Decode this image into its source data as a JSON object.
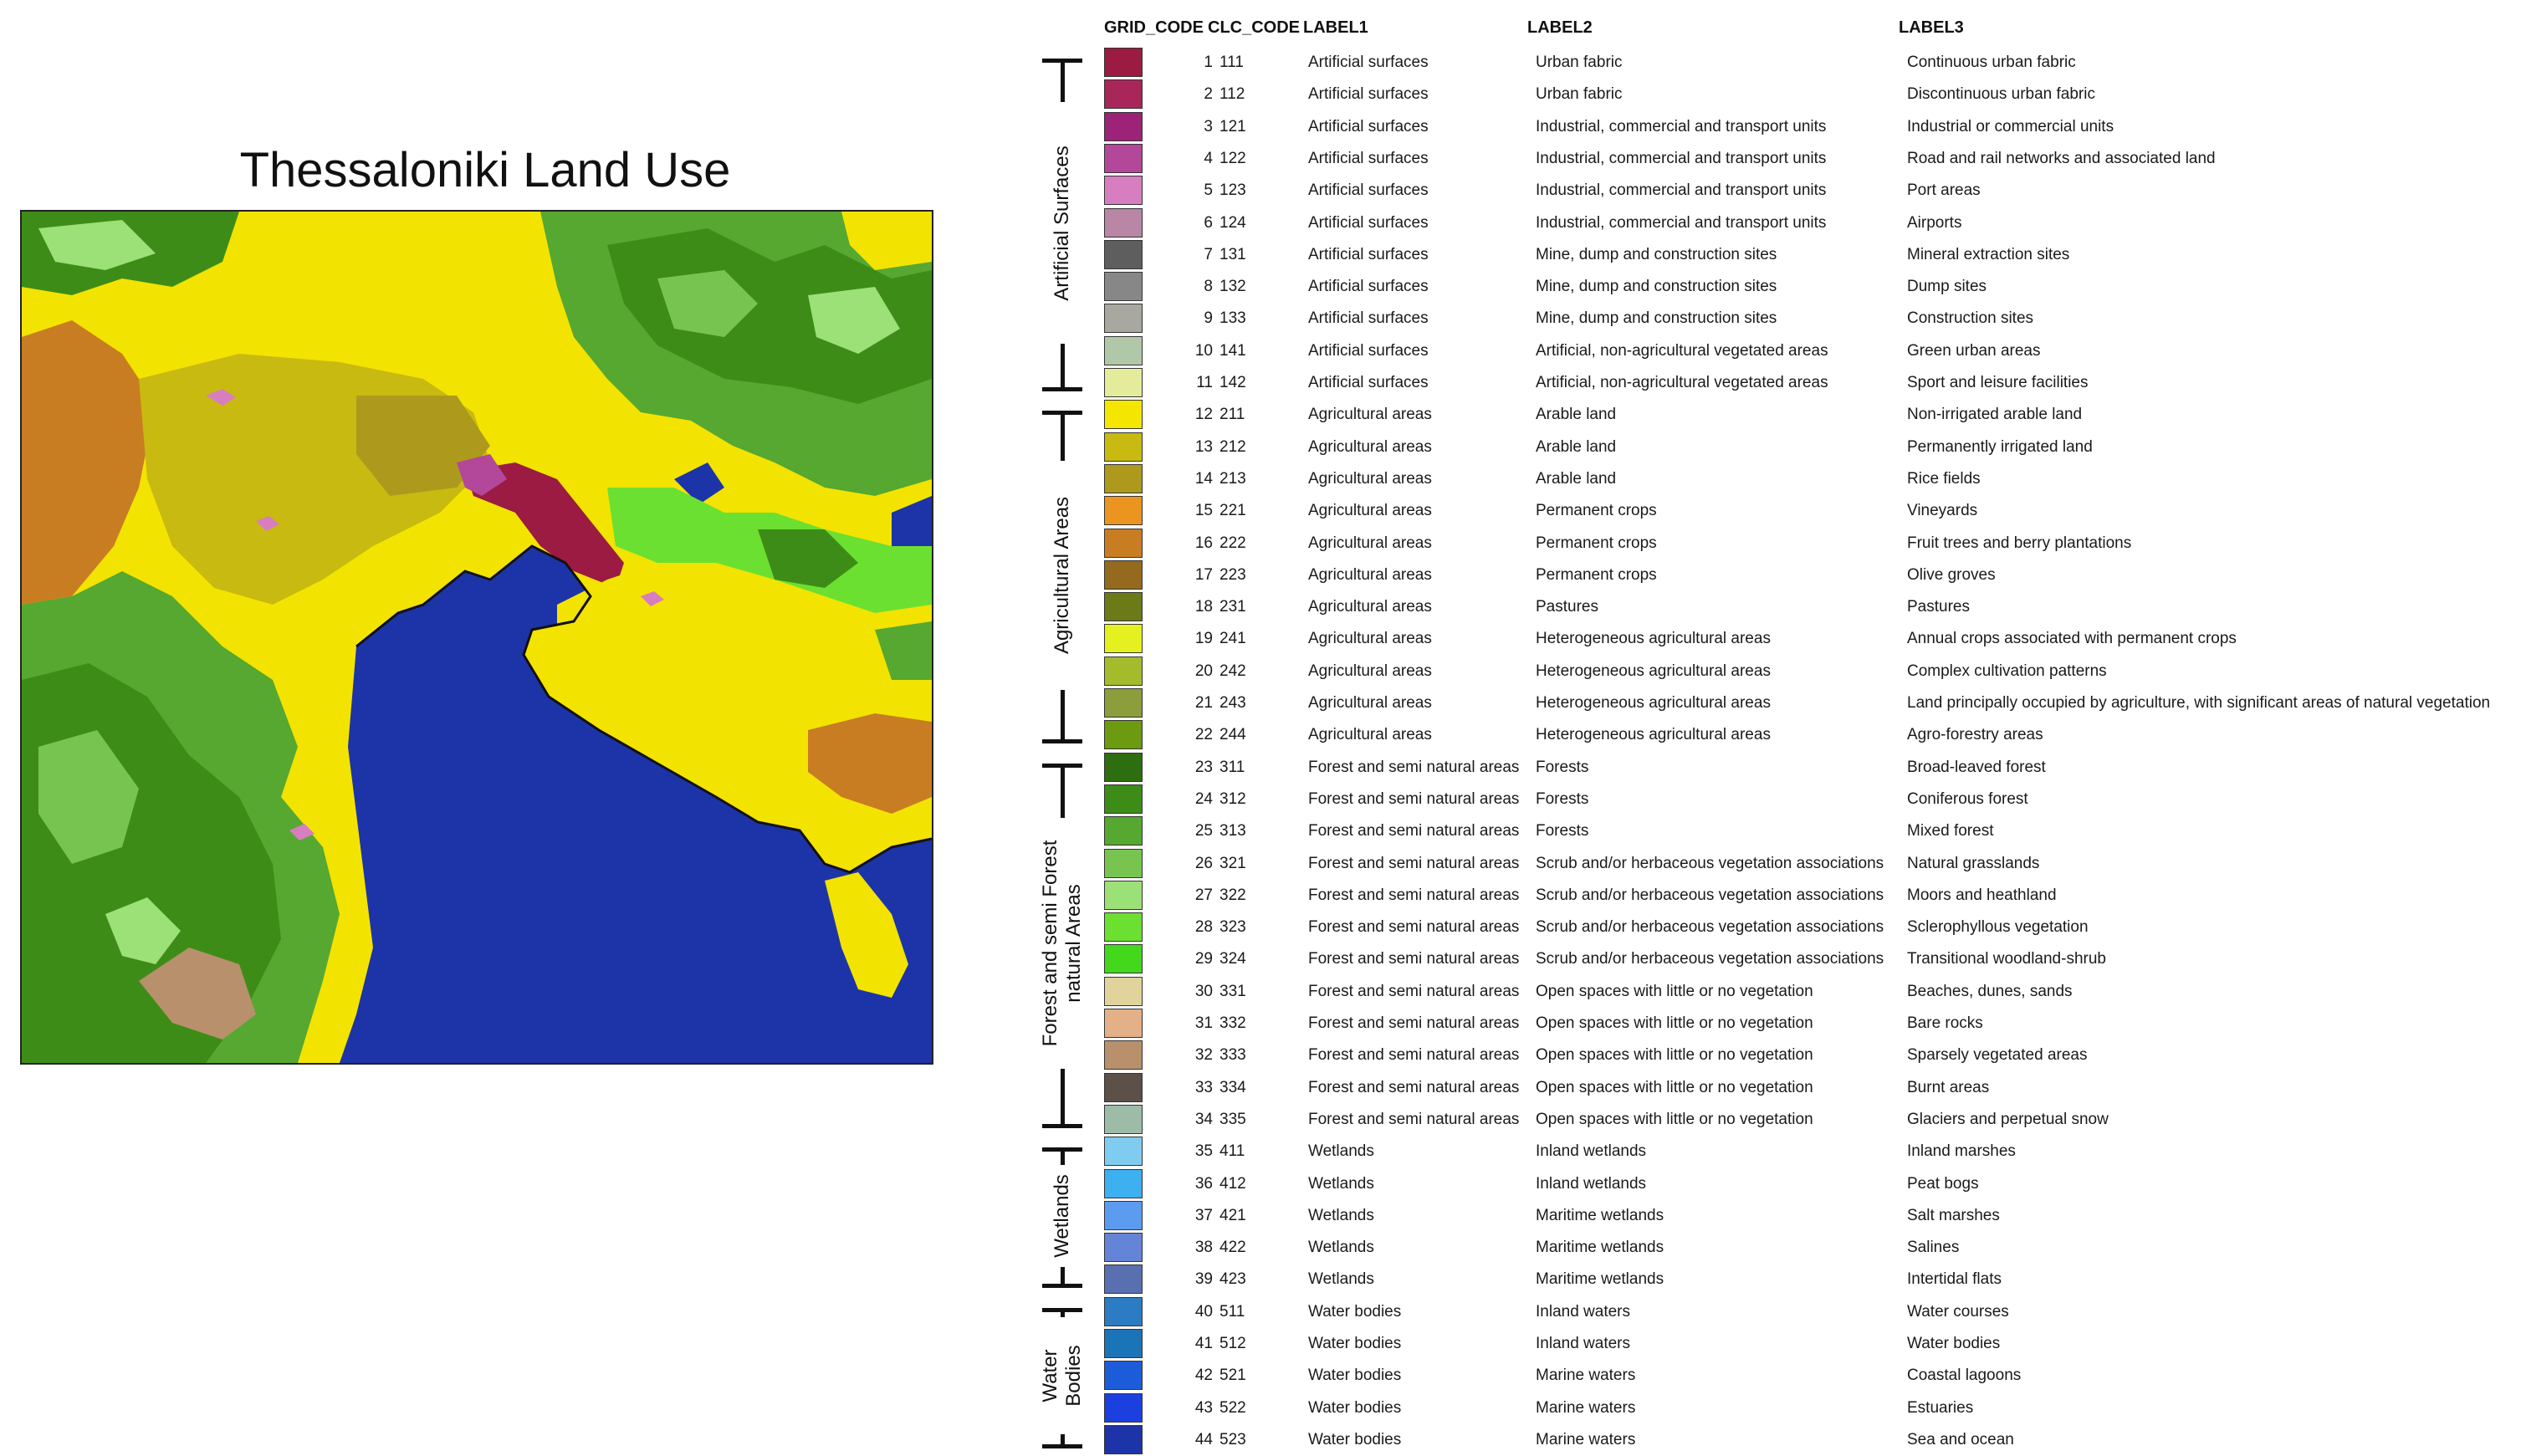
{
  "map": {
    "title": "Thessaloniki Land Use"
  },
  "legend": {
    "headers": {
      "grid_code": "GRID_CODE",
      "clc_code": "CLC_CODE",
      "label1": "LABEL1",
      "label2": "LABEL2",
      "label3": "LABEL3"
    },
    "groups": [
      {
        "label": "Artificial Surfaces",
        "first": 0,
        "last": 10
      },
      {
        "label": "Agricultural Areas",
        "first": 11,
        "last": 21
      },
      {
        "label": "Forest and semi Forest natural Areas",
        "lines": [
          "Forest and semi Forest",
          "natural Areas"
        ],
        "first": 22,
        "last": 33
      },
      {
        "label": "Wetlands",
        "first": 34,
        "last": 38
      },
      {
        "label": "Water Bodies",
        "lines": [
          "Water",
          "Bodies"
        ],
        "first": 39,
        "last": 43
      }
    ],
    "rows": [
      {
        "grid": "1",
        "clc": "111",
        "l1": "Artificial surfaces",
        "l2": "Urban fabric",
        "l3": "Continuous urban fabric",
        "color": "#9b1b43"
      },
      {
        "grid": "2",
        "clc": "112",
        "l1": "Artificial surfaces",
        "l2": "Urban fabric",
        "l3": "Discontinuous urban fabric",
        "color": "#a8265a"
      },
      {
        "grid": "3",
        "clc": "121",
        "l1": "Artificial surfaces",
        "l2": "Industrial, commercial and transport units",
        "l3": "Industrial or commercial units",
        "color": "#9c2378"
      },
      {
        "grid": "4",
        "clc": "122",
        "l1": "Artificial surfaces",
        "l2": "Industrial, commercial and transport units",
        "l3": "Road and rail networks and associated land",
        "color": "#b3479a"
      },
      {
        "grid": "5",
        "clc": "123",
        "l1": "Artificial surfaces",
        "l2": "Industrial, commercial and transport units",
        "l3": "Port areas",
        "color": "#d77ec0"
      },
      {
        "grid": "6",
        "clc": "124",
        "l1": "Artificial surfaces",
        "l2": "Industrial, commercial and transport units",
        "l3": "Airports",
        "color": "#b986a6"
      },
      {
        "grid": "7",
        "clc": "131",
        "l1": "Artificial surfaces",
        "l2": "Mine, dump and construction sites",
        "l3": "Mineral extraction sites",
        "color": "#5e5e5e"
      },
      {
        "grid": "8",
        "clc": "132",
        "l1": "Artificial surfaces",
        "l2": "Mine, dump and construction sites",
        "l3": "Dump sites",
        "color": "#878787"
      },
      {
        "grid": "9",
        "clc": "133",
        "l1": "Artificial surfaces",
        "l2": "Mine, dump and construction sites",
        "l3": "Construction sites",
        "color": "#a8a8a0"
      },
      {
        "grid": "10",
        "clc": "141",
        "l1": "Artificial surfaces",
        "l2": "Artificial, non-agricultural vegetated areas",
        "l3": "Green urban areas",
        "color": "#b0c8a8"
      },
      {
        "grid": "11",
        "clc": "142",
        "l1": "Artificial surfaces",
        "l2": "Artificial, non-agricultural vegetated areas",
        "l3": "Sport and leisure facilities",
        "color": "#e4ec9c"
      },
      {
        "grid": "12",
        "clc": "211",
        "l1": "Agricultural areas",
        "l2": "Arable land",
        "l3": "Non-irrigated arable land",
        "color": "#f5e600"
      },
      {
        "grid": "13",
        "clc": "212",
        "l1": "Agricultural areas",
        "l2": "Arable land",
        "l3": "Permanently irrigated land",
        "color": "#c8ba10"
      },
      {
        "grid": "14",
        "clc": "213",
        "l1": "Agricultural areas",
        "l2": "Arable land",
        "l3": "Rice fields",
        "color": "#ad9a1c"
      },
      {
        "grid": "15",
        "clc": "221",
        "l1": "Agricultural areas",
        "l2": "Permanent crops",
        "l3": "Vineyards",
        "color": "#ec9420"
      },
      {
        "grid": "16",
        "clc": "222",
        "l1": "Agricultural areas",
        "l2": "Permanent crops",
        "l3": "Fruit trees and berry plantations",
        "color": "#c97d22"
      },
      {
        "grid": "17",
        "clc": "223",
        "l1": "Agricultural areas",
        "l2": "Permanent crops",
        "l3": "Olive groves",
        "color": "#946a1e"
      },
      {
        "grid": "18",
        "clc": "231",
        "l1": "Agricultural areas",
        "l2": "Pastures",
        "l3": "Pastures",
        "color": "#6c7a18"
      },
      {
        "grid": "19",
        "clc": "241",
        "l1": "Agricultural areas",
        "l2": "Heterogeneous agricultural areas",
        "l3": "Annual crops associated with permanent crops",
        "color": "#e4f020"
      },
      {
        "grid": "20",
        "clc": "242",
        "l1": "Agricultural areas",
        "l2": "Heterogeneous agricultural areas",
        "l3": "Complex cultivation patterns",
        "color": "#a4bc2c"
      },
      {
        "grid": "21",
        "clc": "243",
        "l1": "Agricultural areas",
        "l2": "Heterogeneous agricultural areas",
        "l3": "Land principally occupied by agriculture, with significant areas of natural vegetation",
        "color": "#8c9e3c"
      },
      {
        "grid": "22",
        "clc": "244",
        "l1": "Agricultural areas",
        "l2": "Heterogeneous agricultural areas",
        "l3": "Agro-forestry areas",
        "color": "#6c9a10"
      },
      {
        "grid": "23",
        "clc": "311",
        "l1": "Forest and semi natural areas",
        "l2": "Forests",
        "l3": "Broad-leaved forest",
        "color": "#2c6e10"
      },
      {
        "grid": "24",
        "clc": "312",
        "l1": "Forest and semi natural areas",
        "l2": "Forests",
        "l3": "Coniferous forest",
        "color": "#3e8c18"
      },
      {
        "grid": "25",
        "clc": "313",
        "l1": "Forest and semi natural areas",
        "l2": "Forests",
        "l3": "Mixed forest",
        "color": "#56a830"
      },
      {
        "grid": "26",
        "clc": "321",
        "l1": "Forest and semi natural areas",
        "l2": "Scrub and/or herbaceous vegetation associations",
        "l3": "Natural grasslands",
        "color": "#78c450"
      },
      {
        "grid": "27",
        "clc": "322",
        "l1": "Forest and semi natural areas",
        "l2": "Scrub and/or herbaceous vegetation associations",
        "l3": "Moors and heathland",
        "color": "#9ce078"
      },
      {
        "grid": "28",
        "clc": "323",
        "l1": "Forest and semi natural areas",
        "l2": "Scrub and/or herbaceous vegetation associations",
        "l3": "Sclerophyllous vegetation",
        "color": "#6ce030"
      },
      {
        "grid": "29",
        "clc": "324",
        "l1": "Forest and semi natural areas",
        "l2": "Scrub and/or herbaceous vegetation associations",
        "l3": "Transitional woodland-shrub",
        "color": "#44d81c"
      },
      {
        "grid": "30",
        "clc": "331",
        "l1": "Forest and semi natural areas",
        "l2": "Open spaces with little or no vegetation",
        "l3": "Beaches, dunes, sands",
        "color": "#e0d49c"
      },
      {
        "grid": "31",
        "clc": "332",
        "l1": "Forest and semi natural areas",
        "l2": "Open spaces with little or no vegetation",
        "l3": "Bare rocks",
        "color": "#e4b088"
      },
      {
        "grid": "32",
        "clc": "333",
        "l1": "Forest and semi natural areas",
        "l2": "Open spaces with little or no vegetation",
        "l3": "Sparsely vegetated areas",
        "color": "#b8906c"
      },
      {
        "grid": "33",
        "clc": "334",
        "l1": "Forest and semi natural areas",
        "l2": "Open spaces with little or no vegetation",
        "l3": "Burnt areas",
        "color": "#5c5048"
      },
      {
        "grid": "34",
        "clc": "335",
        "l1": "Forest and semi natural areas",
        "l2": "Open spaces with little or no vegetation",
        "l3": "Glaciers and perpetual snow",
        "color": "#9cbca8"
      },
      {
        "grid": "35",
        "clc": "411",
        "l1": "Wetlands",
        "l2": "Inland wetlands",
        "l3": "Inland marshes",
        "color": "#80ccf0"
      },
      {
        "grid": "36",
        "clc": "412",
        "l1": "Wetlands",
        "l2": "Inland wetlands",
        "l3": "Peat bogs",
        "color": "#3cb0f0"
      },
      {
        "grid": "37",
        "clc": "421",
        "l1": "Wetlands",
        "l2": "Maritime wetlands",
        "l3": "Salt marshes",
        "color": "#5c9cf0"
      },
      {
        "grid": "38",
        "clc": "422",
        "l1": "Wetlands",
        "l2": "Maritime wetlands",
        "l3": "Salines",
        "color": "#6484d8"
      },
      {
        "grid": "39",
        "clc": "423",
        "l1": "Wetlands",
        "l2": "Maritime wetlands",
        "l3": "Intertidal flats",
        "color": "#5870b0"
      },
      {
        "grid": "40",
        "clc": "511",
        "l1": "Water bodies",
        "l2": "Inland waters",
        "l3": "Water courses",
        "color": "#2c7cc4"
      },
      {
        "grid": "41",
        "clc": "512",
        "l1": "Water bodies",
        "l2": "Inland waters",
        "l3": "Water bodies",
        "color": "#1c74b8"
      },
      {
        "grid": "42",
        "clc": "521",
        "l1": "Water bodies",
        "l2": "Marine waters",
        "l3": "Coastal lagoons",
        "color": "#1c5cd8"
      },
      {
        "grid": "43",
        "clc": "522",
        "l1": "Water bodies",
        "l2": "Marine waters",
        "l3": "Estuaries",
        "color": "#1c40e0"
      },
      {
        "grid": "44",
        "clc": "523",
        "l1": "Water bodies",
        "l2": "Marine waters",
        "l3": "Sea and ocean",
        "color": "#1c34a8"
      }
    ]
  }
}
